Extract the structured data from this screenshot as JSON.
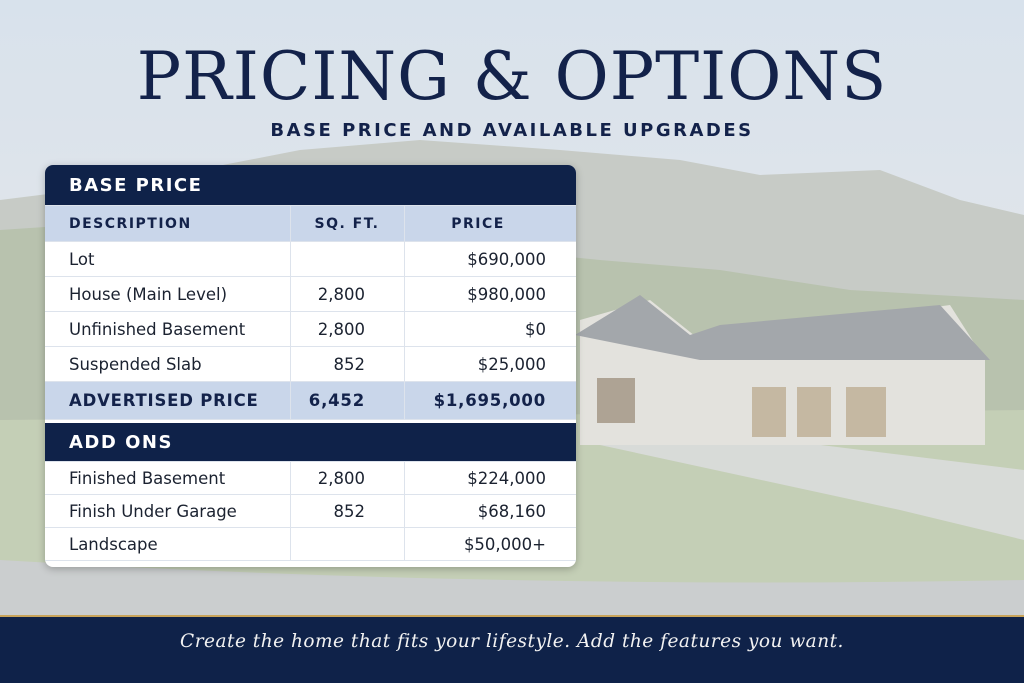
{
  "header": {
    "title": "PRICING & OPTIONS",
    "subtitle": "BASE PRICE AND AVAILABLE UPGRADES"
  },
  "base_price": {
    "title": "BASE PRICE",
    "columns": [
      "DESCRIPTION",
      "SQ. FT.",
      "PRICE"
    ],
    "rows": [
      [
        "Lot",
        null,
        "$690,000"
      ],
      [
        "House (Main Level)",
        "2,800",
        "$980,000"
      ],
      [
        "Unfinished Basement",
        "2,800",
        "$0"
      ],
      [
        "Suspended Slab",
        "852",
        "$25,000"
      ]
    ],
    "total": [
      "ADVERTISED PRICE",
      "6,452",
      "$1,695,000"
    ]
  },
  "add_ons": {
    "title": "ADD ONS",
    "rows": [
      [
        "Finished Basement",
        "2,800",
        "$224,000"
      ],
      [
        "Finish Under Garage",
        "852",
        "$68,160"
      ],
      [
        "Landscape",
        null,
        "$50,000+"
      ]
    ]
  },
  "footer": {
    "tagline": "Create the home that fits your lifestyle. Add the features you want."
  }
}
